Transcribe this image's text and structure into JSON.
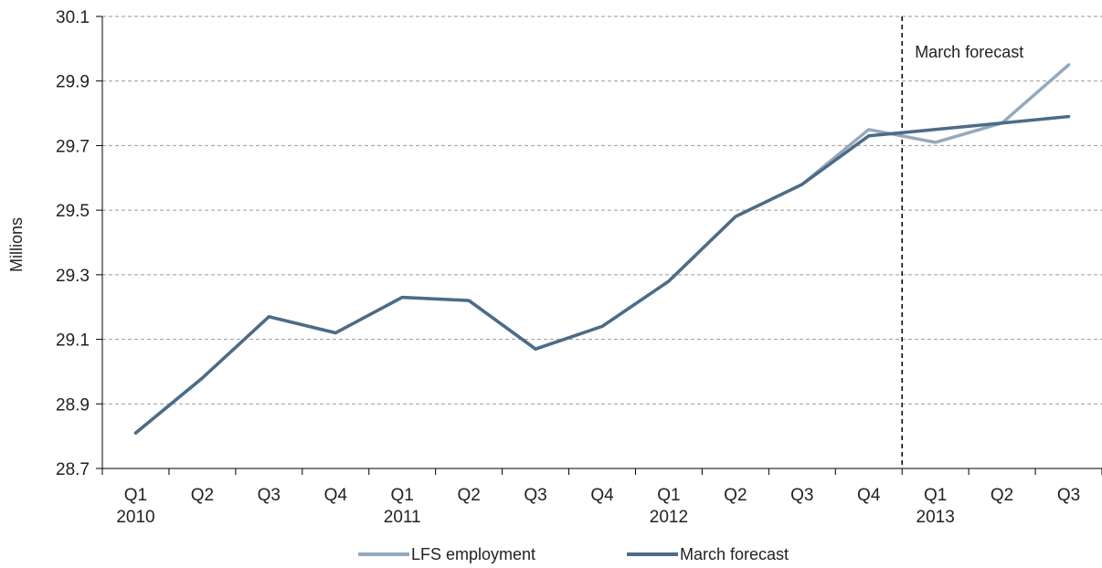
{
  "chart_data": {
    "type": "line",
    "ylabel": "Millions",
    "ylim": [
      28.7,
      30.1
    ],
    "yticks": [
      "28.7",
      "28.9",
      "29.1",
      "29.3",
      "29.5",
      "29.7",
      "29.9",
      "30.1"
    ],
    "grid": true,
    "categories": [
      "Q1",
      "Q2",
      "Q3",
      "Q4",
      "Q1",
      "Q2",
      "Q3",
      "Q4",
      "Q1",
      "Q2",
      "Q3",
      "Q4",
      "Q1",
      "Q2",
      "Q3"
    ],
    "years": [
      {
        "label": "2010",
        "index": 0
      },
      {
        "label": "2011",
        "index": 4
      },
      {
        "label": "2012",
        "index": 8
      },
      {
        "label": "2013",
        "index": 12
      }
    ],
    "series": [
      {
        "name": "LFS employment",
        "color": "#95a9bb",
        "values": [
          28.81,
          28.98,
          29.17,
          29.12,
          29.23,
          29.22,
          29.07,
          29.14,
          29.28,
          29.48,
          29.58,
          29.75,
          29.71,
          29.77,
          29.95
        ]
      },
      {
        "name": "March forecast",
        "color": "#4c6c87",
        "values": [
          28.81,
          28.98,
          29.17,
          29.12,
          29.23,
          29.22,
          29.07,
          29.14,
          29.28,
          29.48,
          29.58,
          29.73,
          29.75,
          29.77,
          29.79
        ]
      }
    ],
    "annotation": {
      "text": "March forecast",
      "boundary_between": [
        11,
        12
      ]
    },
    "legend_position": "bottom"
  }
}
